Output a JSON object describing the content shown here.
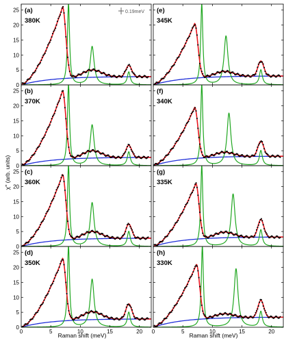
{
  "figure": {
    "xlabel": "Raman shift (meV)",
    "ylabel": "χ'' (arb. units)",
    "legend_errorbar_label": "0.19meV",
    "colors": {
      "data": "#000000",
      "fit_total": "#e8141c",
      "phonon": "#1fa61f",
      "background": "#1f2fd8"
    }
  },
  "chart_data": [
    {
      "type": "line",
      "label": "(a)",
      "temperature": "380K",
      "xlim": [
        0,
        22
      ],
      "ylim": [
        0,
        27
      ],
      "xticks": [
        0,
        5,
        10,
        15,
        20
      ],
      "yticks": [
        0,
        5,
        10,
        15,
        20,
        25
      ],
      "peaks": [
        {
          "x": 7.0,
          "y": 26
        },
        {
          "x": 12.0,
          "y": 5
        },
        {
          "x": 18.2,
          "y": 6.5
        }
      ],
      "phonons": [
        {
          "x": 8.0,
          "y": 27
        },
        {
          "x": 12.0,
          "y": 12.8
        },
        {
          "x": 18.2,
          "y": 4.3
        }
      ],
      "background_max": 2.8
    },
    {
      "type": "line",
      "label": "(b)",
      "temperature": "370K",
      "xlim": [
        0,
        22
      ],
      "ylim": [
        0,
        27
      ],
      "xticks": [
        0,
        5,
        10,
        15,
        20
      ],
      "yticks": [
        0,
        5,
        10,
        15,
        20,
        25
      ],
      "peaks": [
        {
          "x": 7.0,
          "y": 25
        },
        {
          "x": 12.0,
          "y": 5
        },
        {
          "x": 18.2,
          "y": 6.8
        }
      ],
      "phonons": [
        {
          "x": 8.0,
          "y": 27
        },
        {
          "x": 12.0,
          "y": 13.6
        },
        {
          "x": 18.2,
          "y": 4.6
        }
      ],
      "background_max": 2.8
    },
    {
      "type": "line",
      "label": "(c)",
      "temperature": "360K",
      "xlim": [
        0,
        22
      ],
      "ylim": [
        0,
        27
      ],
      "xticks": [
        0,
        5,
        10,
        15,
        20
      ],
      "yticks": [
        0,
        5,
        10,
        15,
        20,
        25
      ],
      "peaks": [
        {
          "x": 7.0,
          "y": 24
        },
        {
          "x": 12.0,
          "y": 5
        },
        {
          "x": 18.2,
          "y": 7.5
        }
      ],
      "phonons": [
        {
          "x": 8.0,
          "y": 27
        },
        {
          "x": 12.0,
          "y": 14.6
        },
        {
          "x": 18.2,
          "y": 5
        }
      ],
      "background_max": 2.8
    },
    {
      "type": "line",
      "label": "(d)",
      "temperature": "350K",
      "xlim": [
        0,
        22
      ],
      "ylim": [
        0,
        27
      ],
      "xticks": [
        0,
        5,
        10,
        15,
        20
      ],
      "yticks": [
        0,
        5,
        10,
        15,
        20,
        25
      ],
      "peaks": [
        {
          "x": 7.0,
          "y": 23
        },
        {
          "x": 12.0,
          "y": 5.2
        },
        {
          "x": 18.2,
          "y": 7.8
        }
      ],
      "phonons": [
        {
          "x": 8.0,
          "y": 27
        },
        {
          "x": 12.0,
          "y": 16
        },
        {
          "x": 18.2,
          "y": 5
        }
      ],
      "background_max": 2.8
    },
    {
      "type": "line",
      "label": "(e)",
      "temperature": "345K",
      "xlim": [
        0,
        22
      ],
      "ylim": [
        0,
        27
      ],
      "xticks": [
        0,
        5,
        10,
        15,
        20
      ],
      "yticks": [],
      "peaks": [
        {
          "x": 7.0,
          "y": 20.5
        },
        {
          "x": 12.0,
          "y": 4.5
        },
        {
          "x": 18.2,
          "y": 8
        }
      ],
      "phonons": [
        {
          "x": 8.2,
          "y": 27
        },
        {
          "x": 12.3,
          "y": 16.3
        },
        {
          "x": 18.2,
          "y": 5
        }
      ],
      "background_max": 3.0
    },
    {
      "type": "line",
      "label": "(f)",
      "temperature": "340K",
      "xlim": [
        0,
        22
      ],
      "ylim": [
        0,
        27
      ],
      "xticks": [
        0,
        5,
        10,
        15,
        20
      ],
      "yticks": [],
      "peaks": [
        {
          "x": 7.0,
          "y": 19.5
        },
        {
          "x": 12.0,
          "y": 4.5
        },
        {
          "x": 18.2,
          "y": 8.2
        }
      ],
      "phonons": [
        {
          "x": 8.2,
          "y": 27
        },
        {
          "x": 12.8,
          "y": 17.5
        },
        {
          "x": 18.2,
          "y": 5
        }
      ],
      "background_max": 3.2
    },
    {
      "type": "line",
      "label": "(g)",
      "temperature": "335K",
      "xlim": [
        0,
        22
      ],
      "ylim": [
        0,
        27
      ],
      "xticks": [
        0,
        5,
        10,
        15,
        20
      ],
      "yticks": [],
      "peaks": [
        {
          "x": 7.2,
          "y": 21
        },
        {
          "x": 12.0,
          "y": 4.8
        },
        {
          "x": 18.2,
          "y": 9
        }
      ],
      "phonons": [
        {
          "x": 8.2,
          "y": 27
        },
        {
          "x": 13.5,
          "y": 17.5
        },
        {
          "x": 18.2,
          "y": 5.5
        }
      ],
      "background_max": 3.2
    },
    {
      "type": "line",
      "label": "(h)",
      "temperature": "330K",
      "xlim": [
        0,
        22
      ],
      "ylim": [
        0,
        27
      ],
      "xticks": [
        0,
        5,
        10,
        15,
        20
      ],
      "yticks": [],
      "peaks": [
        {
          "x": 7.3,
          "y": 21
        },
        {
          "x": 12.0,
          "y": 4.5
        },
        {
          "x": 18.2,
          "y": 9
        }
      ],
      "phonons": [
        {
          "x": 8.3,
          "y": 27
        },
        {
          "x": 14.0,
          "y": 19.5
        },
        {
          "x": 18.2,
          "y": 5.2
        }
      ],
      "background_max": 3.4
    }
  ]
}
